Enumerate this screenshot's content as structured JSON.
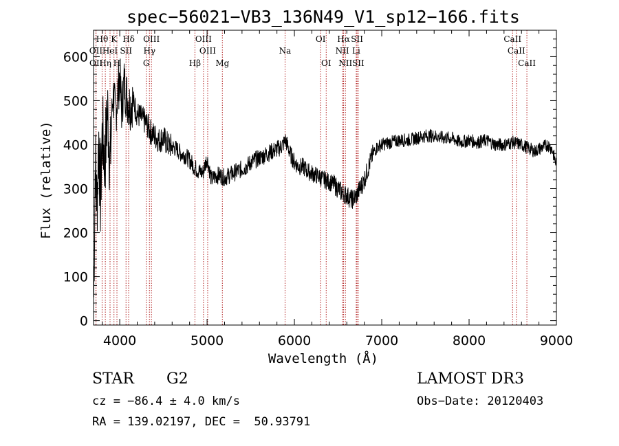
{
  "chart_data": {
    "type": "line",
    "title": "spec−56021−VB3_136N49_V1_sp12−166.fits",
    "xlabel": "Wavelength (Å)",
    "ylabel": "Flux (relative)",
    "xlim": [
      3700,
      9000
    ],
    "ylim": [
      -10,
      660
    ],
    "x_ticks": [
      4000,
      5000,
      6000,
      7000,
      8000,
      9000
    ],
    "y_ticks": [
      0,
      100,
      200,
      300,
      400,
      500,
      600
    ],
    "colors": {
      "spectrum": "#000000",
      "lines": "#b22222"
    },
    "series": [
      {
        "name": "flux",
        "x": [
          3700,
          3720,
          3740,
          3760,
          3780,
          3800,
          3830,
          3860,
          3890,
          3920,
          3950,
          3980,
          4000,
          4020,
          4050,
          4080,
          4110,
          4150,
          4200,
          4250,
          4300,
          4350,
          4400,
          4450,
          4500,
          4550,
          4600,
          4650,
          4700,
          4750,
          4800,
          4850,
          4900,
          4950,
          5000,
          5050,
          5100,
          5150,
          5200,
          5250,
          5300,
          5350,
          5400,
          5450,
          5500,
          5550,
          5600,
          5650,
          5700,
          5750,
          5800,
          5850,
          5900,
          5950,
          6000,
          6050,
          6100,
          6150,
          6200,
          6250,
          6300,
          6350,
          6400,
          6450,
          6500,
          6550,
          6600,
          6650,
          6700,
          6750,
          6800,
          6850,
          6900,
          6950,
          7000,
          7100,
          7200,
          7300,
          7400,
          7500,
          7600,
          7700,
          7800,
          7900,
          8000,
          8100,
          8200,
          8300,
          8400,
          8500,
          8600,
          8650,
          8700,
          8750,
          8800,
          8850,
          8900,
          8950,
          8990
        ],
        "values": [
          20,
          370,
          260,
          420,
          270,
          430,
          360,
          480,
          350,
          520,
          470,
          520,
          560,
          480,
          540,
          510,
          490,
          500,
          470,
          460,
          450,
          430,
          420,
          410,
          415,
          400,
          395,
          390,
          380,
          375,
          365,
          350,
          340,
          335,
          370,
          320,
          330,
          330,
          325,
          330,
          335,
          340,
          345,
          350,
          360,
          365,
          370,
          375,
          380,
          385,
          390,
          395,
          410,
          380,
          360,
          350,
          350,
          340,
          335,
          330,
          325,
          320,
          315,
          310,
          300,
          290,
          285,
          275,
          280,
          300,
          320,
          350,
          380,
          395,
          400,
          405,
          410,
          410,
          415,
          420,
          420,
          415,
          415,
          405,
          410,
          405,
          410,
          400,
          400,
          405,
          400,
          395,
          390,
          385,
          390,
          395,
          400,
          390,
          360
        ]
      }
    ],
    "line_groups": [
      {
        "row": 0,
        "labels": [
          "Hθ",
          "K",
          "Hδ",
          "OIII",
          "OIII",
          "OI",
          "Hα",
          "SII",
          "CaII"
        ]
      },
      {
        "row": 1,
        "labels": [
          "OII",
          "HeI",
          "SII",
          "Hγ",
          "OIII",
          "Na",
          "NII",
          "Li",
          "CaII"
        ]
      },
      {
        "row": 2,
        "labels": [
          "OII",
          "Hη",
          "H",
          "G",
          "Hβ",
          "Mg",
          "OI",
          "NII",
          "SII",
          "CaII"
        ]
      }
    ],
    "lines": [
      {
        "label": "Hθ",
        "wl": 3798,
        "row": 0
      },
      {
        "label": "K",
        "wl": 3934,
        "row": 0
      },
      {
        "label": "Hδ",
        "wl": 4102,
        "row": 0
      },
      {
        "label": "OIII",
        "wl": 4363,
        "row": 0
      },
      {
        "label": "OIII",
        "wl": 4959,
        "row": 0
      },
      {
        "label": "OI",
        "wl": 6300,
        "row": 0
      },
      {
        "label": "Hα",
        "wl": 6563,
        "row": 0
      },
      {
        "label": "SII",
        "wl": 6717,
        "row": 0
      },
      {
        "label": "CaII",
        "wl": 8498,
        "row": 0
      },
      {
        "label": "OII",
        "wl": 3727,
        "row": 1
      },
      {
        "label": "HeI",
        "wl": 3889,
        "row": 1
      },
      {
        "label": "SII",
        "wl": 4072,
        "row": 1
      },
      {
        "label": "Hγ",
        "wl": 4340,
        "row": 1
      },
      {
        "label": "OIII",
        "wl": 5007,
        "row": 1
      },
      {
        "label": "Na",
        "wl": 5893,
        "row": 1
      },
      {
        "label": "NII",
        "wl": 6548,
        "row": 1
      },
      {
        "label": "Li",
        "wl": 6708,
        "row": 1
      },
      {
        "label": "CaII",
        "wl": 8542,
        "row": 1
      },
      {
        "label": "OII",
        "wl": 3729,
        "row": 2
      },
      {
        "label": "Hη",
        "wl": 3835,
        "row": 2
      },
      {
        "label": "H",
        "wl": 3968,
        "row": 2
      },
      {
        "label": "G",
        "wl": 4304,
        "row": 2
      },
      {
        "label": "Hβ",
        "wl": 4861,
        "row": 2
      },
      {
        "label": "Mg",
        "wl": 5175,
        "row": 2
      },
      {
        "label": "OI",
        "wl": 6364,
        "row": 2
      },
      {
        "label": "NII",
        "wl": 6584,
        "row": 2
      },
      {
        "label": "SII",
        "wl": 6731,
        "row": 2
      },
      {
        "label": "CaII",
        "wl": 8662,
        "row": 2
      }
    ]
  },
  "info": {
    "class": "STAR",
    "subclass": "G2",
    "survey": "LAMOST DR3",
    "cz": "cz = −86.4 ± 4.0 km/s",
    "obs_date": "Obs−Date: 20120403",
    "coords": "RA = 139.02197, DEC =  50.93791"
  }
}
